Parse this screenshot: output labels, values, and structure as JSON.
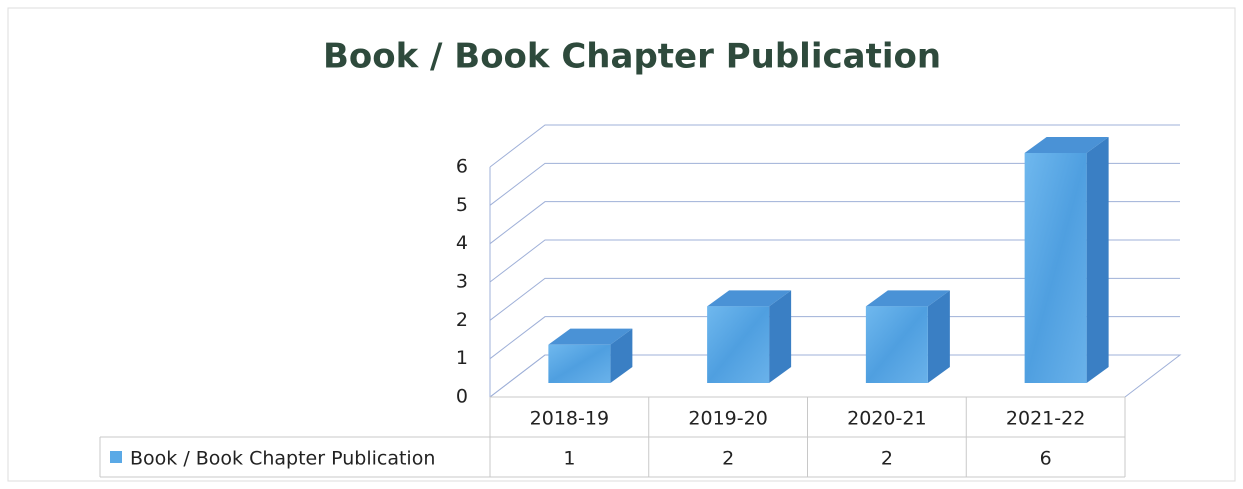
{
  "chart_data": {
    "type": "bar3d",
    "title": "Book / Book Chapter Publication",
    "categories": [
      "2018-19",
      "2019-20",
      "2020-21",
      "2021-22"
    ],
    "series": [
      {
        "name": "Book / Book Chapter Publication",
        "color": "#5aa9e6",
        "values": [
          1,
          2,
          2,
          6
        ]
      }
    ],
    "ylim": [
      0,
      6
    ],
    "yticks": [
      0,
      1,
      2,
      3,
      4,
      5,
      6
    ],
    "grid": true,
    "data_table": true
  }
}
